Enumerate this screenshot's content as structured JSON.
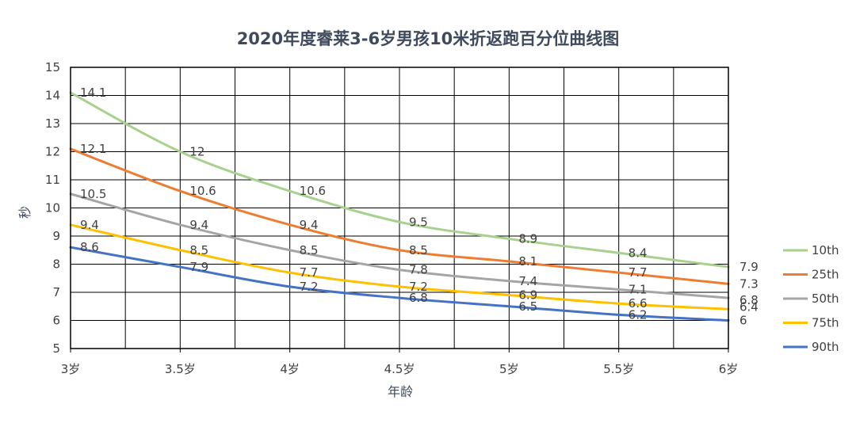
{
  "chart_data": {
    "type": "line",
    "title": "2020年度睿莱3-6岁男孩10米折返跑百分位曲线图",
    "xlabel": "年龄",
    "ylabel": "秒",
    "x": [
      3,
      3.5,
      4,
      4.5,
      5,
      5.5,
      6
    ],
    "x_tick_labels": [
      "3岁",
      "3.5岁",
      "4岁",
      "4.5岁",
      "5岁",
      "5.5岁",
      "6岁"
    ],
    "ylim": [
      5,
      15
    ],
    "y_ticks": [
      5,
      6,
      7,
      8,
      9,
      10,
      11,
      12,
      13,
      14,
      15
    ],
    "grid": true,
    "legend_position": "right",
    "series": [
      {
        "name": "10th",
        "color": "#a9d18e",
        "values": [
          14.1,
          12,
          10.6,
          9.5,
          8.9,
          8.4,
          7.9
        ]
      },
      {
        "name": "25th",
        "color": "#ed7d31",
        "values": [
          12.1,
          10.6,
          9.4,
          8.5,
          8.1,
          7.7,
          7.3
        ]
      },
      {
        "name": "50th",
        "color": "#a5a5a5",
        "values": [
          10.5,
          9.4,
          8.5,
          7.8,
          7.4,
          7.1,
          6.8
        ]
      },
      {
        "name": "75th",
        "color": "#ffc000",
        "values": [
          9.4,
          8.5,
          7.7,
          7.2,
          6.9,
          6.6,
          6.4
        ]
      },
      {
        "name": "90th",
        "color": "#4472c4",
        "values": [
          8.6,
          7.9,
          7.2,
          6.8,
          6.5,
          6.2,
          6
        ]
      }
    ]
  }
}
